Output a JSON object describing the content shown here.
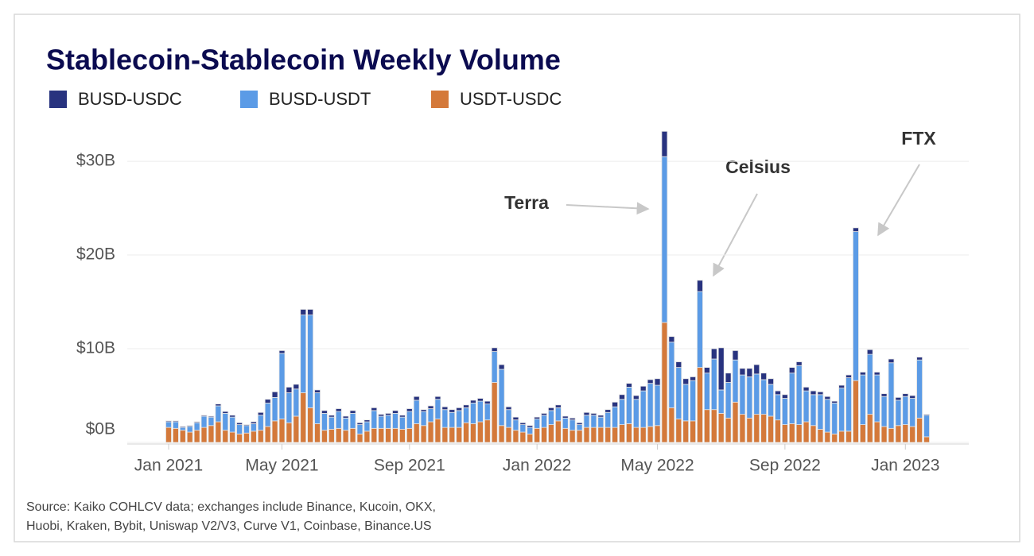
{
  "chart_data": {
    "type": "stacked-bar",
    "title": "Stablecoin-Stablecoin Weekly Volume",
    "source": [
      "Source: Kaiko COHLCV data; exchanges include Binance, Kucoin, OKX,",
      "Huobi, Kraken, Bybit, Uniswap V2/V3, Curve V1, Coinbase, Binance.US"
    ],
    "annotations": [
      "Terra",
      "Celsius",
      "FTX"
    ],
    "categories": [
      "Jan 2021",
      null,
      null,
      null,
      null,
      null,
      null,
      null,
      null,
      null,
      null,
      null,
      null,
      null,
      null,
      null,
      "May 2021",
      null,
      null,
      null,
      null,
      null,
      null,
      null,
      null,
      null,
      null,
      null,
      null,
      null,
      null,
      null,
      null,
      null,
      "Sep 2021",
      null,
      null,
      null,
      null,
      null,
      null,
      null,
      null,
      null,
      null,
      null,
      null,
      null,
      null,
      null,
      null,
      null,
      "Jan 2022",
      null,
      null,
      null,
      null,
      null,
      null,
      null,
      null,
      null,
      null,
      null,
      null,
      null,
      null,
      null,
      null,
      "May 2022",
      null,
      null,
      null,
      null,
      null,
      null,
      null,
      null,
      null,
      null,
      null,
      null,
      null,
      null,
      null,
      null,
      null,
      "Sep 2022",
      null,
      null,
      null,
      null,
      null,
      null,
      null,
      null,
      null,
      null,
      null,
      null,
      null,
      null,
      null,
      null,
      "Jan 2023",
      null,
      null,
      null
    ],
    "series": [
      {
        "name": "BUSD-USDC",
        "color": "#28337f",
        "values": [
          0.1,
          0.1,
          0.1,
          0.1,
          0.1,
          0.1,
          0.1,
          0.2,
          0.2,
          0.2,
          0.2,
          0.1,
          0.2,
          0.3,
          0.4,
          0.6,
          0.3,
          0.6,
          0.5,
          0.6,
          0.6,
          0.3,
          0.3,
          0.2,
          0.3,
          0.2,
          0.3,
          0.2,
          0.2,
          0.3,
          0.2,
          0.2,
          0.3,
          0.2,
          0.3,
          0.4,
          0.2,
          0.3,
          0.3,
          0.3,
          0.3,
          0.3,
          0.3,
          0.3,
          0.3,
          0.3,
          0.4,
          0.5,
          0.3,
          0.3,
          0.2,
          0.2,
          0.2,
          0.2,
          0.3,
          0.3,
          0.2,
          0.2,
          0.2,
          0.3,
          0.2,
          0.2,
          0.3,
          0.5,
          0.5,
          0.4,
          0.4,
          0.5,
          0.4,
          0.7,
          2.7,
          0.6,
          0.6,
          0.6,
          0.4,
          1.2,
          0.6,
          1.1,
          4.5,
          1.0,
          1.0,
          0.7,
          0.9,
          1.0,
          0.7,
          0.6,
          0.4,
          0.4,
          0.6,
          0.4,
          0.4,
          0.4,
          0.3,
          0.3,
          0.2,
          0.3,
          0.3,
          0.4,
          0.3,
          0.5,
          0.3,
          0.3,
          0.4,
          0.3,
          0.3,
          0.3,
          0.3,
          0.1
        ]
      },
      {
        "name": "BUSD-USDT",
        "color": "#5b9be6",
        "values": [
          0.6,
          0.7,
          0.3,
          0.6,
          0.8,
          1.2,
          0.9,
          1.7,
          1.8,
          1.6,
          1.0,
          0.8,
          0.8,
          1.6,
          2.5,
          2.5,
          7.0,
          3.2,
          2.9,
          8.3,
          9.9,
          3.3,
          1.8,
          1.3,
          1.8,
          1.3,
          1.6,
          1.0,
          1.0,
          1.9,
          1.3,
          1.4,
          1.6,
          1.3,
          1.8,
          2.5,
          1.5,
          1.4,
          2.1,
          1.9,
          1.6,
          1.8,
          1.6,
          2.2,
          2.2,
          1.7,
          3.3,
          6.0,
          1.9,
          1.1,
          0.8,
          0.7,
          1.0,
          1.3,
          1.5,
          1.4,
          1.1,
          1.1,
          0.6,
          1.3,
          1.3,
          1.1,
          1.6,
          2.2,
          2.7,
          3.9,
          3.0,
          3.9,
          4.6,
          4.3,
          17.7,
          7.0,
          5.5,
          3.9,
          4.3,
          8.1,
          3.9,
          5.4,
          2.5,
          3.8,
          4.5,
          4.2,
          4.4,
          4.3,
          3.7,
          3.4,
          2.7,
          2.8,
          5.4,
          6.3,
          3.3,
          3.3,
          3.7,
          3.5,
          3.3,
          4.6,
          5.7,
          15.9,
          5.3,
          6.4,
          5.0,
          3.2,
          7.0,
          2.7,
          3.0,
          3.0,
          6.2,
          2.3
        ]
      },
      {
        "name": "USDT-USDC",
        "color": "#d4793a",
        "values": [
          1.6,
          1.5,
          1.3,
          1.1,
          1.3,
          1.6,
          1.8,
          2.2,
          1.3,
          1.1,
          0.9,
          1.0,
          1.2,
          1.3,
          1.7,
          2.3,
          2.5,
          2.1,
          2.8,
          5.3,
          3.7,
          2.0,
          1.3,
          1.4,
          1.5,
          1.3,
          1.5,
          0.9,
          1.2,
          1.5,
          1.5,
          1.5,
          1.5,
          1.4,
          1.5,
          2.0,
          1.8,
          2.2,
          2.5,
          1.6,
          1.6,
          1.6,
          2.1,
          2.0,
          2.2,
          2.4,
          6.4,
          1.8,
          1.6,
          1.3,
          1.1,
          0.9,
          1.5,
          1.6,
          1.9,
          2.3,
          1.5,
          1.3,
          1.3,
          1.6,
          1.6,
          1.6,
          1.6,
          1.6,
          1.9,
          2.0,
          1.6,
          1.6,
          1.7,
          1.8,
          12.8,
          3.7,
          2.5,
          2.3,
          2.3,
          8.0,
          3.5,
          3.5,
          3.1,
          2.6,
          4.3,
          3.0,
          2.6,
          3.0,
          3.0,
          2.8,
          2.4,
          1.9,
          2.0,
          1.9,
          2.2,
          1.8,
          1.4,
          1.1,
          0.9,
          1.2,
          1.2,
          6.6,
          1.9,
          3.0,
          2.2,
          1.7,
          1.5,
          1.8,
          1.9,
          1.7,
          2.6,
          0.6
        ]
      }
    ],
    "ylim": [
      0,
      34.5
    ],
    "yticks": [
      {
        "value": 0,
        "label": "$0B"
      },
      {
        "value": 10,
        "label": "$10B"
      },
      {
        "value": 20,
        "label": "$20B"
      },
      {
        "value": 30,
        "label": "$30B"
      }
    ],
    "grid": true
  }
}
